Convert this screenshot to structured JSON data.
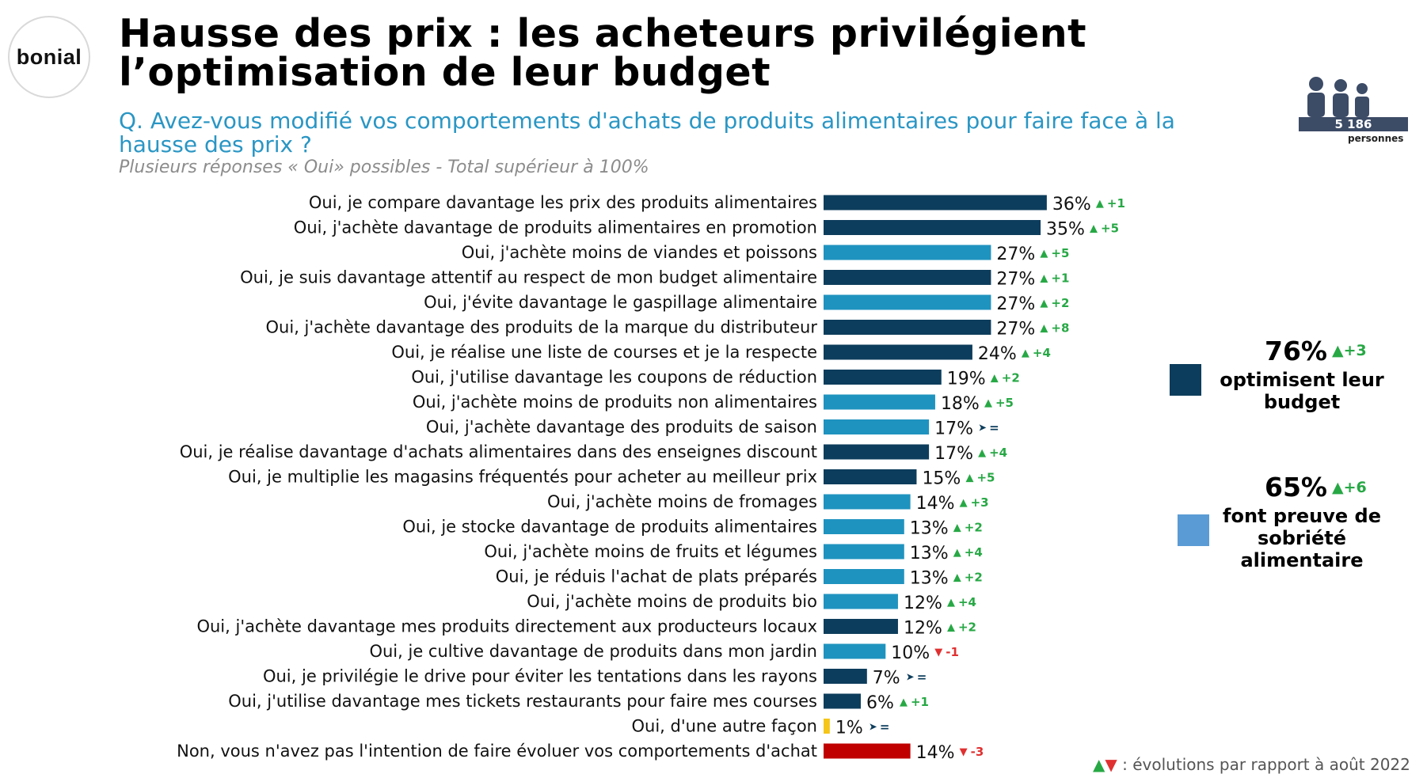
{
  "logo": {
    "text": "bonial"
  },
  "title": {
    "line1": "Hausse des prix : les acheteurs privilégient",
    "line2": "l’optimisation de leur budget"
  },
  "question": "Q. Avez-vous modifié vos comportements d'achats de produits alimentaires pour faire face à la hausse des prix ?",
  "note": "Plusieurs réponses « Oui» possibles - Total supérieur à 100%",
  "sample": {
    "count": "5 186",
    "unit": "personnes",
    "icon": "people-icon"
  },
  "colors": {
    "dark": "#0d3d5c",
    "light": "#1f93bf",
    "other": "#f5c518",
    "non": "#c00000",
    "up": "#27a845",
    "down": "#e03030",
    "equal": "#0d3d5c"
  },
  "legend": [
    {
      "pct": "76%",
      "evo": "+3",
      "line1": "optimisent leur",
      "line2": "budget",
      "color": "#0d3d5c"
    },
    {
      "pct": "65%",
      "evo": "+6",
      "line1": "font preuve de",
      "line2": "sobriété",
      "line3": "alimentaire",
      "color": "#5b9bd5"
    }
  ],
  "footnote": {
    "arrows_up": "▲",
    "arrows_down": "▼",
    "text": ": évolutions par rapport à août 2022"
  },
  "chart_data": {
    "type": "bar",
    "orientation": "horizontal",
    "unit": "%",
    "categories": [
      "Oui, je compare davantage les prix des produits alimentaires",
      "Oui, j'achète davantage de produits alimentaires en promotion",
      "Oui, j'achète moins de viandes et poissons",
      "Oui, je suis davantage attentif au respect de mon budget alimentaire",
      "Oui, j'évite davantage le gaspillage alimentaire",
      "Oui, j'achète davantage des produits de la marque du distributeur",
      "Oui, je réalise une liste de courses et je la respecte",
      "Oui, j'utilise davantage les coupons de réduction",
      "Oui, j'achète moins de produits non alimentaires",
      "Oui, j'achète davantage des produits de saison",
      "Oui, je réalise davantage d'achats alimentaires dans des enseignes discount",
      "Oui, je multiplie les magasins fréquentés pour acheter au meilleur prix",
      "Oui, j'achète moins de fromages",
      "Oui, je stocke davantage de produits alimentaires",
      "Oui, j'achète moins de fruits et légumes",
      "Oui, je réduis l'achat de plats préparés",
      "Oui, j'achète moins de produits bio",
      "Oui, j'achète davantage mes produits directement aux producteurs locaux",
      "Oui, je cultive davantage de produits dans mon jardin",
      "Oui, je privilégie le drive pour éviter les tentations dans les rayons",
      "Oui, j'utilise davantage mes tickets restaurants pour faire mes courses",
      "Oui, d'une autre façon",
      "Non, vous n'avez pas l'intention de faire évoluer vos comportements d'achat"
    ],
    "values": [
      36,
      35,
      27,
      27,
      27,
      27,
      24,
      19,
      18,
      17,
      17,
      15,
      14,
      13,
      13,
      13,
      12,
      12,
      10,
      7,
      6,
      1,
      14
    ],
    "value_labels": [
      "36%",
      "35%",
      "27%",
      "27%",
      "27%",
      "27%",
      "24%",
      "19%",
      "18%",
      "17%",
      "17%",
      "15%",
      "14%",
      "13%",
      "13%",
      "13%",
      "12%",
      "12%",
      "10%",
      "7%",
      "6%",
      "1%",
      "14%"
    ],
    "groups": [
      "dark",
      "dark",
      "light",
      "dark",
      "light",
      "dark",
      "dark",
      "dark",
      "light",
      "light",
      "dark",
      "dark",
      "light",
      "light",
      "light",
      "light",
      "light",
      "dark",
      "light",
      "dark",
      "dark",
      "other",
      "non"
    ],
    "evolutions": [
      "+1",
      "+5",
      "+5",
      "+1",
      "+2",
      "+8",
      "+4",
      "+2",
      "+5",
      "=",
      "+4",
      "+5",
      "+3",
      "+2",
      "+4",
      "+2",
      "+4",
      "+2",
      "-1",
      "=",
      "+1",
      "=",
      "-3"
    ],
    "evolution_direction": [
      "up",
      "up",
      "up",
      "up",
      "up",
      "up",
      "up",
      "up",
      "up",
      "equal",
      "up",
      "up",
      "up",
      "up",
      "up",
      "up",
      "up",
      "up",
      "down",
      "equal",
      "up",
      "equal",
      "down"
    ],
    "xlim": [
      0,
      36
    ]
  }
}
